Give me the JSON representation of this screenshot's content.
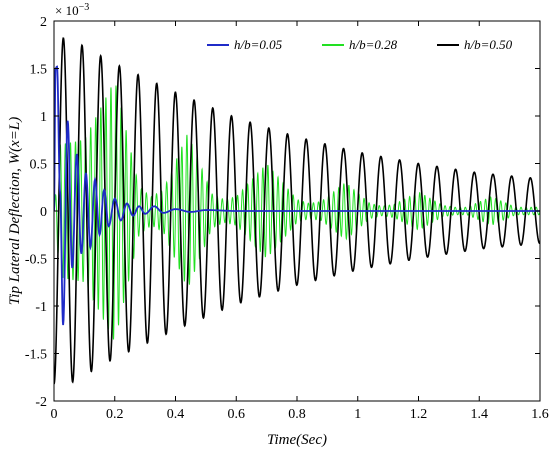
{
  "chart_data": {
    "type": "line",
    "xlabel": "Time(Sec)",
    "ylabel": "Tip Lateral Deflection, W(x=L)",
    "y_exponent_label": "× 10",
    "y_exponent_power": "−3",
    "xlim": [
      0,
      1.6
    ],
    "ylim": [
      -2,
      2
    ],
    "x_ticks": [
      0,
      0.2,
      0.4,
      0.6,
      0.8,
      1,
      1.2,
      1.4,
      1.6
    ],
    "x_tick_labels": [
      "0",
      "0.2",
      "0.4",
      "0.6",
      "0.8",
      "1",
      "1.2",
      "1.4",
      "1.6"
    ],
    "y_ticks": [
      -2,
      -1.5,
      -1,
      -0.5,
      0,
      0.5,
      1,
      1.5,
      2
    ],
    "y_tick_labels": [
      "-2",
      "-1.5",
      "-1",
      "-0.5",
      "0",
      "0.5",
      "1",
      "1.5",
      "2"
    ],
    "grid": false,
    "legend_position": "top-right",
    "series": [
      {
        "name": "h/b=0.05",
        "color": "#1f2bc8",
        "x": [
          0,
          0.005,
          0.01,
          0.02,
          0.03,
          0.045,
          0.06,
          0.075,
          0.09,
          0.105,
          0.12,
          0.135,
          0.15,
          0.165,
          0.18,
          0.2,
          0.22,
          0.24,
          0.26,
          0.28,
          0.3,
          0.33,
          0.36,
          0.4,
          0.45,
          0.5,
          0.6,
          0.8,
          1.0,
          1.2,
          1.4,
          1.6
        ],
        "y": [
          0,
          1.5,
          1.52,
          0.2,
          -1.2,
          0.95,
          -0.6,
          0.6,
          -0.45,
          0.4,
          -0.38,
          0.33,
          -0.25,
          0.22,
          -0.16,
          0.13,
          -0.1,
          0.08,
          -0.05,
          0.05,
          -0.03,
          0.05,
          -0.02,
          0.02,
          -0.01,
          0.01,
          0,
          0,
          0,
          0,
          0,
          0
        ]
      },
      {
        "name": "h/b=0.28",
        "color": "#22e022",
        "frequency_hz": 60,
        "x": [
          0,
          0.02,
          0.1,
          0.2,
          0.28,
          0.32,
          0.36,
          0.44,
          0.52,
          0.56,
          0.6,
          0.7,
          0.8,
          0.84,
          0.88,
          0.96,
          1.04,
          1.08,
          1.12,
          1.2,
          1.28,
          1.32,
          1.36,
          1.44,
          1.52,
          1.56,
          1.6
        ],
        "y": [
          0,
          0.7,
          0.75,
          1.38,
          0.25,
          0.15,
          0.22,
          0.82,
          0.18,
          0.12,
          0.15,
          0.5,
          0.12,
          0.08,
          0.1,
          0.3,
          0.08,
          0.05,
          0.07,
          0.2,
          0.06,
          0.04,
          0.04,
          0.15,
          0.04,
          0.04,
          0.04
        ]
      },
      {
        "name": "h/b=0.50",
        "color": "#000000",
        "period_s": 0.0615,
        "x": [
          0,
          0.05,
          0.2,
          0.4,
          0.6,
          0.8,
          1.0,
          1.2,
          1.4,
          1.6
        ],
        "y": [
          1.82,
          1.82,
          1.55,
          1.25,
          0.98,
          0.78,
          0.62,
          0.5,
          0.4,
          0.34
        ]
      }
    ]
  }
}
